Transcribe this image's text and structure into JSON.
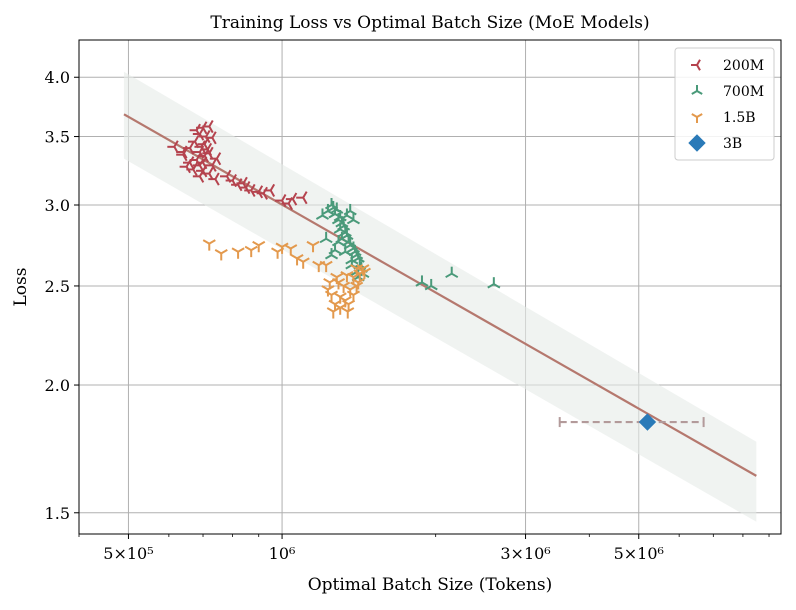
{
  "chart_data": {
    "type": "scatter",
    "title": "Training Loss vs Optimal Batch Size (MoE Models)",
    "xlabel": "Optimal Batch Size (Tokens)",
    "ylabel": "Loss",
    "xscale": "log",
    "yscale": "log",
    "xlim": [
      400000,
      9500000
    ],
    "ylim": [
      1.43,
      4.35
    ],
    "xticks": [
      {
        "value": 500000,
        "label": "5×10⁵"
      },
      {
        "value": 1000000,
        "label": "10⁶"
      },
      {
        "value": 3000000,
        "label": "3×10⁶"
      },
      {
        "value": 5000000,
        "label": "5×10⁶"
      }
    ],
    "yticks": [
      {
        "value": 1.5,
        "label": "1.5"
      },
      {
        "value": 2.0,
        "label": "2.0"
      },
      {
        "value": 2.5,
        "label": "2.5"
      },
      {
        "value": 3.0,
        "label": "3.0"
      },
      {
        "value": 3.5,
        "label": "3.5"
      },
      {
        "value": 4.0,
        "label": "4.0"
      }
    ],
    "grid": true,
    "legend_position": "top-right",
    "fit_line": {
      "x": [
        490000,
        8500000
      ],
      "y": [
        3.68,
        1.63
      ],
      "color": "#b5786e"
    },
    "fit_band": {
      "x": [
        490000,
        8500000
      ],
      "upper": [
        4.05,
        1.76
      ],
      "lower": [
        3.33,
        1.47
      ],
      "color": "#e6ebe8"
    },
    "series": [
      {
        "name": "200M",
        "marker": "tri_left",
        "color": "#b5434e",
        "points": [
          [
            680000,
            3.55
          ],
          [
            700000,
            3.57
          ],
          [
            720000,
            3.58
          ],
          [
            690000,
            3.52
          ],
          [
            710000,
            3.5
          ],
          [
            730000,
            3.49
          ],
          [
            675000,
            3.46
          ],
          [
            705000,
            3.44
          ],
          [
            695000,
            3.42
          ],
          [
            715000,
            3.4
          ],
          [
            660000,
            3.41
          ],
          [
            690000,
            3.38
          ],
          [
            720000,
            3.37
          ],
          [
            640000,
            3.38
          ],
          [
            705000,
            3.35
          ],
          [
            680000,
            3.32
          ],
          [
            660000,
            3.3
          ],
          [
            700000,
            3.3
          ],
          [
            650000,
            3.27
          ],
          [
            690000,
            3.28
          ],
          [
            730000,
            3.28
          ],
          [
            745000,
            3.33
          ],
          [
            670000,
            3.25
          ],
          [
            700000,
            3.24
          ],
          [
            720000,
            3.22
          ],
          [
            690000,
            3.2
          ],
          [
            740000,
            3.18
          ],
          [
            780000,
            3.2
          ],
          [
            800000,
            3.17
          ],
          [
            820000,
            3.14
          ],
          [
            850000,
            3.12
          ],
          [
            840000,
            3.15
          ],
          [
            870000,
            3.1
          ],
          [
            900000,
            3.09
          ],
          [
            920000,
            3.08
          ],
          [
            950000,
            3.1
          ],
          [
            1000000,
            3.03
          ],
          [
            1050000,
            3.04
          ],
          [
            1100000,
            3.05
          ],
          [
            1030000,
            3.01
          ],
          [
            615000,
            3.42
          ],
          [
            640000,
            3.36
          ]
        ]
      },
      {
        "name": "700M",
        "marker": "tri_up",
        "color": "#4a9a7a",
        "points": [
          [
            1200000,
            2.93
          ],
          [
            1230000,
            2.96
          ],
          [
            1250000,
            3.0
          ],
          [
            1260000,
            2.98
          ],
          [
            1280000,
            2.97
          ],
          [
            1270000,
            2.94
          ],
          [
            1300000,
            2.92
          ],
          [
            1290000,
            2.9
          ],
          [
            1310000,
            2.88
          ],
          [
            1320000,
            2.86
          ],
          [
            1300000,
            2.84
          ],
          [
            1330000,
            2.82
          ],
          [
            1340000,
            2.8
          ],
          [
            1310000,
            2.78
          ],
          [
            1350000,
            2.76
          ],
          [
            1360000,
            2.74
          ],
          [
            1380000,
            2.72
          ],
          [
            1390000,
            2.7
          ],
          [
            1400000,
            2.68
          ],
          [
            1410000,
            2.66
          ],
          [
            1370000,
            2.65
          ],
          [
            1420000,
            2.62
          ],
          [
            1430000,
            2.6
          ],
          [
            1400000,
            2.58
          ],
          [
            1440000,
            2.57
          ],
          [
            1410000,
            2.55
          ],
          [
            1290000,
            2.76
          ],
          [
            1270000,
            2.71
          ],
          [
            1250000,
            2.68
          ],
          [
            1220000,
            2.78
          ],
          [
            1340000,
            2.93
          ],
          [
            1380000,
            2.9
          ],
          [
            1370000,
            2.62
          ],
          [
            1880000,
            2.52
          ],
          [
            1960000,
            2.5
          ],
          [
            2150000,
            2.57
          ],
          [
            2600000,
            2.51
          ],
          [
            1360000,
            2.96
          ],
          [
            1330000,
            2.7
          ]
        ]
      },
      {
        "name": "1.5B",
        "marker": "tri_down",
        "color": "#e3994d",
        "points": [
          [
            720000,
            2.75
          ],
          [
            760000,
            2.69
          ],
          [
            820000,
            2.7
          ],
          [
            870000,
            2.71
          ],
          [
            900000,
            2.74
          ],
          [
            980000,
            2.7
          ],
          [
            1000000,
            2.73
          ],
          [
            1040000,
            2.72
          ],
          [
            1070000,
            2.66
          ],
          [
            1100000,
            2.64
          ],
          [
            1180000,
            2.62
          ],
          [
            1220000,
            2.62
          ],
          [
            1150000,
            2.74
          ],
          [
            1280000,
            2.55
          ],
          [
            1340000,
            2.56
          ],
          [
            1380000,
            2.55
          ],
          [
            1400000,
            2.6
          ],
          [
            1420000,
            2.57
          ],
          [
            1450000,
            2.58
          ],
          [
            1440000,
            2.6
          ],
          [
            1230000,
            2.48
          ],
          [
            1250000,
            2.45
          ],
          [
            1270000,
            2.4
          ],
          [
            1300000,
            2.38
          ],
          [
            1330000,
            2.42
          ],
          [
            1350000,
            2.4
          ],
          [
            1360000,
            2.48
          ],
          [
            1380000,
            2.45
          ],
          [
            1400000,
            2.5
          ],
          [
            1410000,
            2.52
          ],
          [
            1320000,
            2.5
          ],
          [
            1290000,
            2.52
          ],
          [
            1300000,
            2.44
          ],
          [
            1260000,
            2.36
          ],
          [
            1345000,
            2.36
          ],
          [
            1240000,
            2.52
          ]
        ]
      },
      {
        "name": "3B",
        "marker": "diamond",
        "color": "#2a7ab8",
        "points": [
          [
            5200000,
            1.84
          ]
        ],
        "x_error": [
          3500000,
          6700000
        ]
      }
    ]
  }
}
